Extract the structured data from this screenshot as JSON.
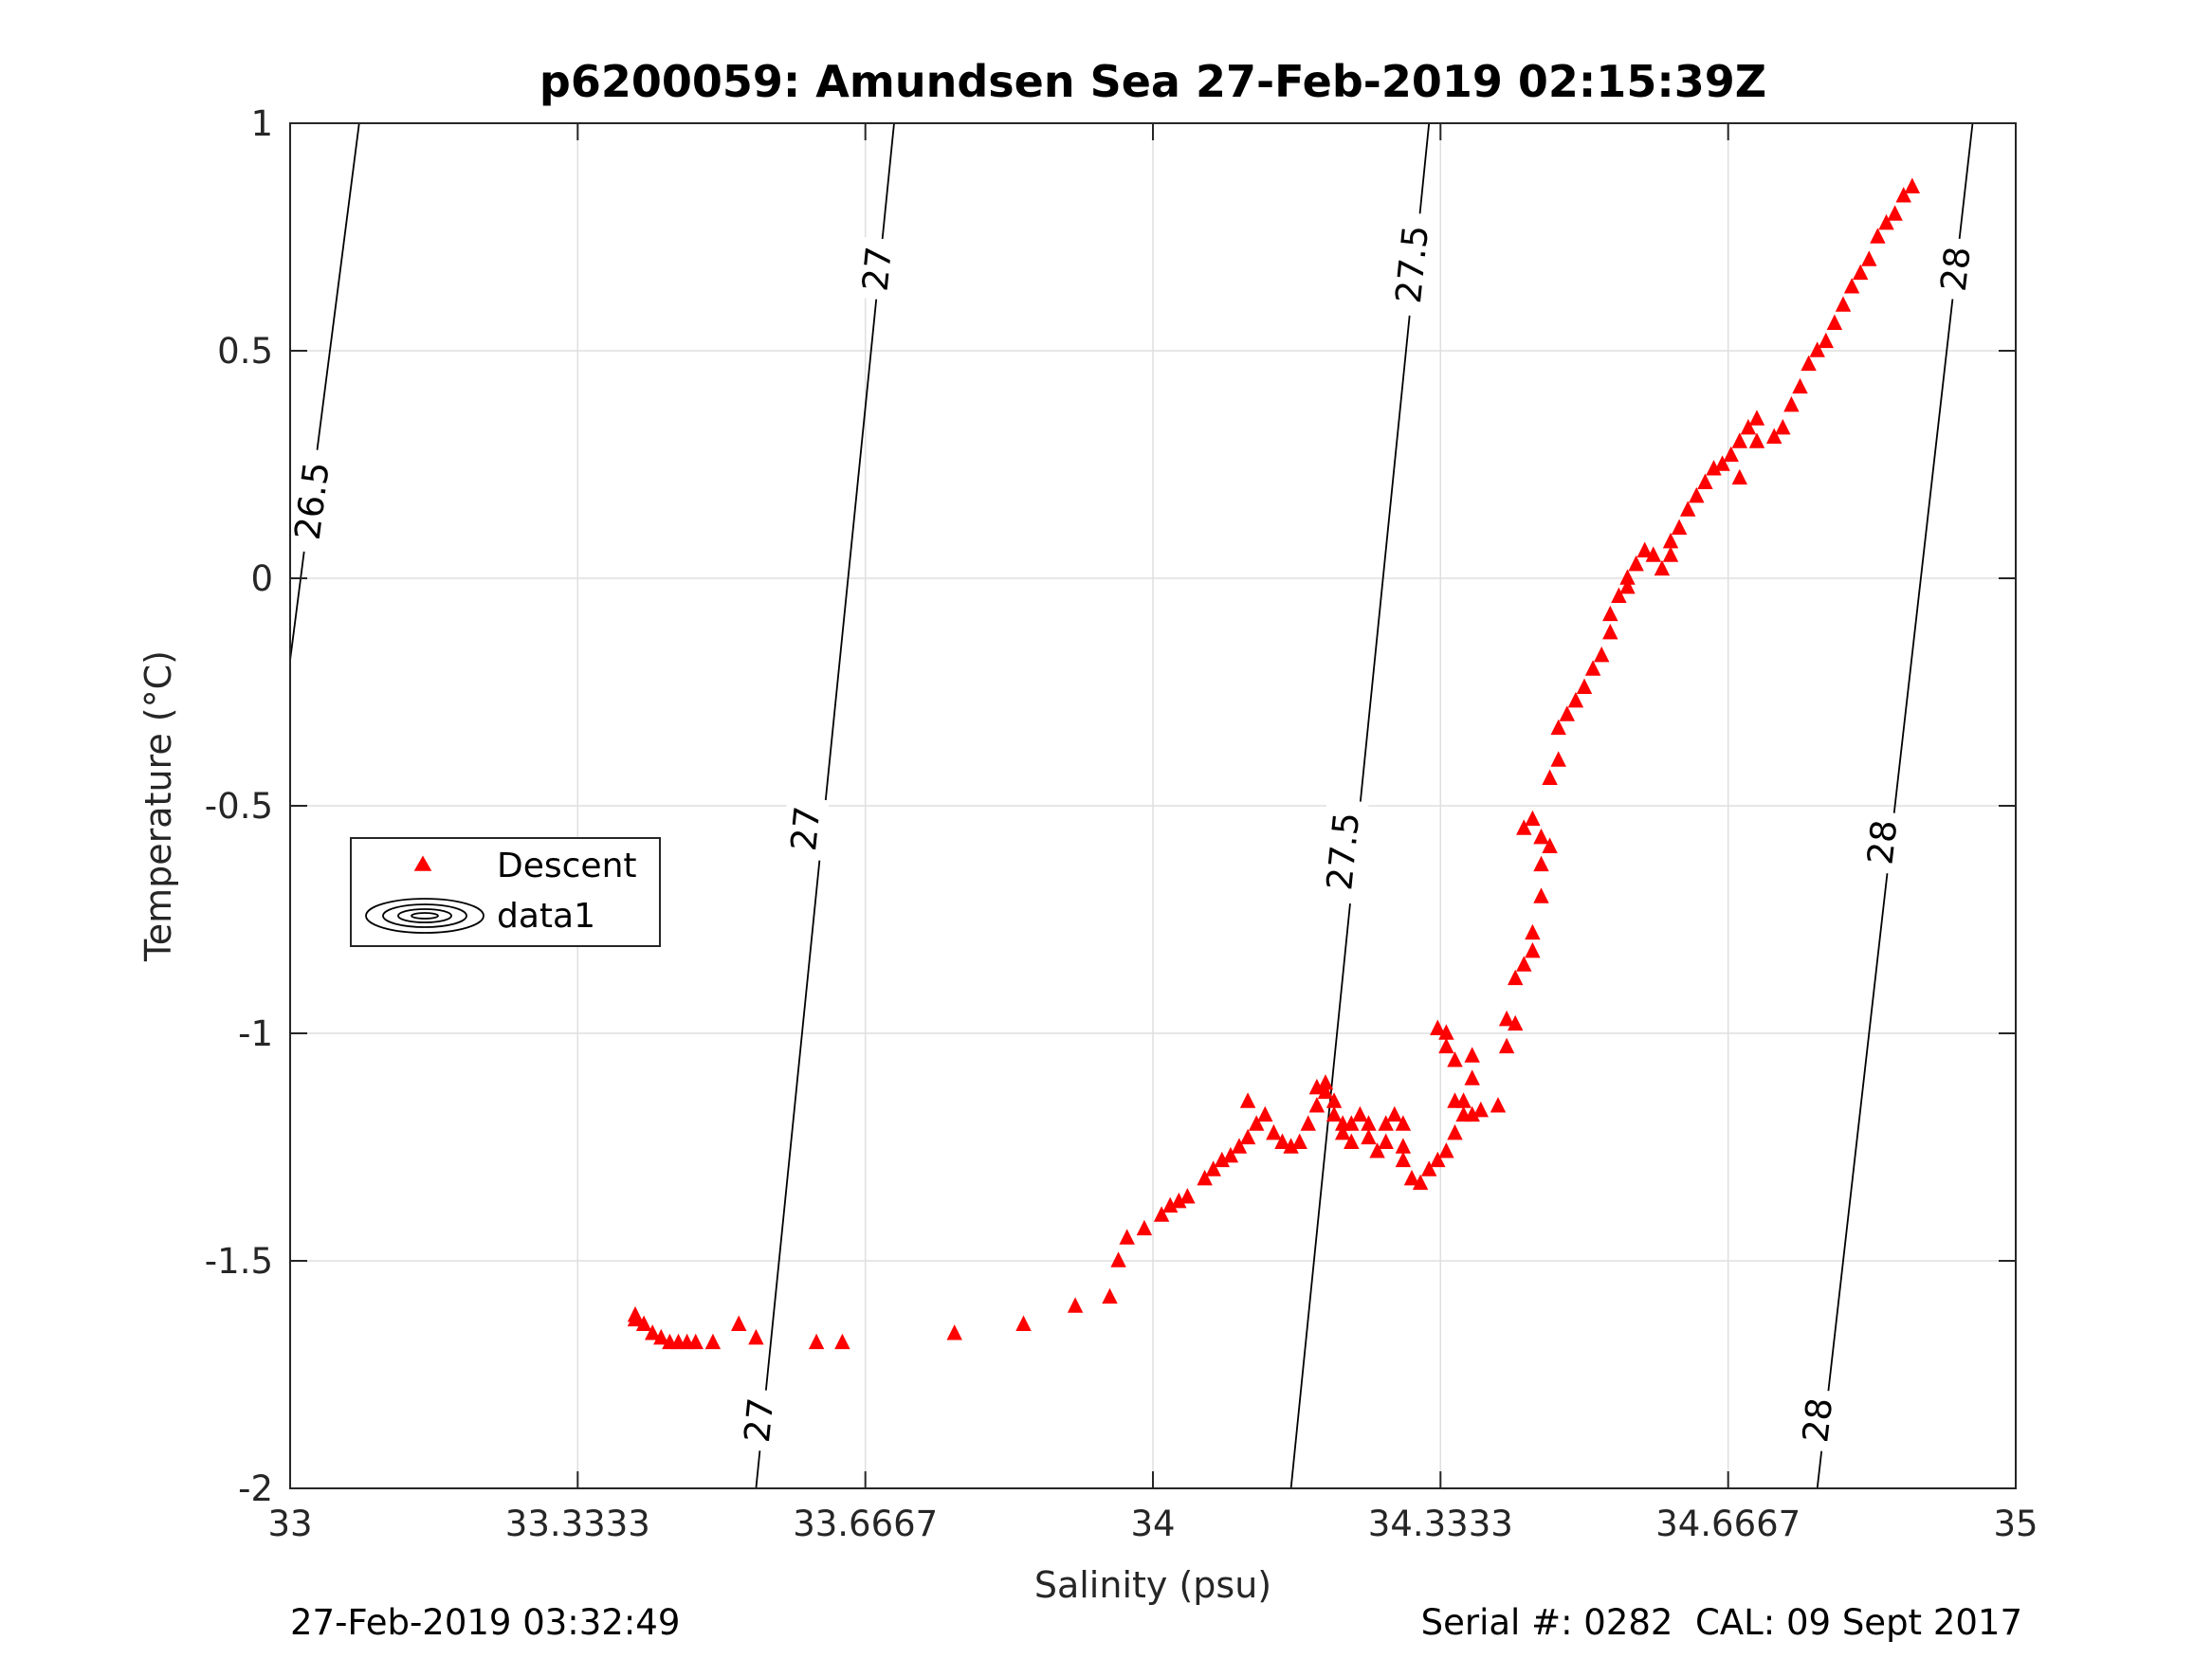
{
  "chart_data": {
    "type": "scatter",
    "title": "p6200059: Amundsen Sea 27-Feb-2019 02:15:39Z",
    "xlabel": "Salinity (psu)",
    "ylabel": "Temperature (°C)",
    "xlim": [
      33,
      35
    ],
    "ylim": [
      -2,
      1
    ],
    "xticks": [
      33,
      33.3333,
      33.6667,
      34,
      34.3333,
      34.6667,
      35
    ],
    "xtick_labels": [
      "33",
      "33.3333",
      "33.6667",
      "34",
      "34.3333",
      "34.6667",
      "35"
    ],
    "yticks": [
      1,
      0.5,
      0,
      -0.5,
      -1,
      -1.5,
      -2
    ],
    "ytick_labels": [
      "1",
      "0.5",
      "0",
      "-0.5",
      "-1",
      "-1.5",
      "-2"
    ],
    "grid": true,
    "legend_position": "center-left",
    "legend": [
      {
        "label": "Descent",
        "marker": "triangle",
        "color": "#ff0000"
      },
      {
        "label": "data1",
        "marker": "contour",
        "color": "#000000"
      }
    ],
    "series": [
      {
        "name": "Descent",
        "color": "#ff0000",
        "marker": "triangle",
        "points": [
          [
            33.4,
            -1.62
          ],
          [
            33.4,
            -1.63
          ],
          [
            33.41,
            -1.64
          ],
          [
            33.42,
            -1.66
          ],
          [
            33.43,
            -1.67
          ],
          [
            33.44,
            -1.68
          ],
          [
            33.45,
            -1.68
          ],
          [
            33.46,
            -1.68
          ],
          [
            33.47,
            -1.68
          ],
          [
            33.49,
            -1.68
          ],
          [
            33.52,
            -1.64
          ],
          [
            33.54,
            -1.67
          ],
          [
            33.61,
            -1.68
          ],
          [
            33.64,
            -1.68
          ],
          [
            33.77,
            -1.66
          ],
          [
            33.85,
            -1.64
          ],
          [
            33.91,
            -1.6
          ],
          [
            33.95,
            -1.58
          ],
          [
            33.96,
            -1.5
          ],
          [
            33.97,
            -1.45
          ],
          [
            33.99,
            -1.43
          ],
          [
            34.01,
            -1.4
          ],
          [
            34.02,
            -1.38
          ],
          [
            34.03,
            -1.37
          ],
          [
            34.04,
            -1.36
          ],
          [
            34.06,
            -1.32
          ],
          [
            34.07,
            -1.3
          ],
          [
            34.08,
            -1.28
          ],
          [
            34.09,
            -1.27
          ],
          [
            34.1,
            -1.25
          ],
          [
            34.11,
            -1.23
          ],
          [
            34.12,
            -1.2
          ],
          [
            34.11,
            -1.15
          ],
          [
            34.13,
            -1.18
          ],
          [
            34.14,
            -1.22
          ],
          [
            34.15,
            -1.24
          ],
          [
            34.16,
            -1.25
          ],
          [
            34.17,
            -1.24
          ],
          [
            34.18,
            -1.2
          ],
          [
            34.19,
            -1.16
          ],
          [
            34.19,
            -1.12
          ],
          [
            34.2,
            -1.11
          ],
          [
            34.2,
            -1.13
          ],
          [
            34.21,
            -1.15
          ],
          [
            34.21,
            -1.18
          ],
          [
            34.22,
            -1.2
          ],
          [
            34.22,
            -1.22
          ],
          [
            34.23,
            -1.24
          ],
          [
            34.23,
            -1.2
          ],
          [
            34.24,
            -1.18
          ],
          [
            34.25,
            -1.2
          ],
          [
            34.25,
            -1.23
          ],
          [
            34.26,
            -1.26
          ],
          [
            34.27,
            -1.24
          ],
          [
            34.27,
            -1.2
          ],
          [
            34.28,
            -1.18
          ],
          [
            34.29,
            -1.2
          ],
          [
            34.29,
            -1.25
          ],
          [
            34.29,
            -1.28
          ],
          [
            34.3,
            -1.32
          ],
          [
            34.31,
            -1.33
          ],
          [
            34.32,
            -1.3
          ],
          [
            34.33,
            -1.28
          ],
          [
            34.34,
            -1.26
          ],
          [
            34.35,
            -1.22
          ],
          [
            34.36,
            -1.18
          ],
          [
            34.36,
            -1.15
          ],
          [
            34.37,
            -1.1
          ],
          [
            34.37,
            -1.05
          ],
          [
            34.33,
            -0.99
          ],
          [
            34.34,
            -1.0
          ],
          [
            34.34,
            -1.03
          ],
          [
            34.35,
            -1.06
          ],
          [
            34.35,
            -1.15
          ],
          [
            34.37,
            -1.18
          ],
          [
            34.38,
            -1.17
          ],
          [
            34.4,
            -1.16
          ],
          [
            34.41,
            -1.03
          ],
          [
            34.41,
            -0.97
          ],
          [
            34.42,
            -0.98
          ],
          [
            34.42,
            -0.88
          ],
          [
            34.43,
            -0.85
          ],
          [
            34.44,
            -0.82
          ],
          [
            34.44,
            -0.78
          ],
          [
            34.45,
            -0.7
          ],
          [
            34.45,
            -0.63
          ],
          [
            34.43,
            -0.55
          ],
          [
            34.44,
            -0.53
          ],
          [
            34.45,
            -0.57
          ],
          [
            34.46,
            -0.59
          ],
          [
            34.46,
            -0.44
          ],
          [
            34.47,
            -0.4
          ],
          [
            34.47,
            -0.33
          ],
          [
            34.48,
            -0.3
          ],
          [
            34.49,
            -0.27
          ],
          [
            34.5,
            -0.24
          ],
          [
            34.51,
            -0.2
          ],
          [
            34.52,
            -0.17
          ],
          [
            34.53,
            -0.12
          ],
          [
            34.53,
            -0.08
          ],
          [
            34.54,
            -0.04
          ],
          [
            34.55,
            -0.02
          ],
          [
            34.55,
            0.0
          ],
          [
            34.56,
            0.03
          ],
          [
            34.57,
            0.06
          ],
          [
            34.58,
            0.05
          ],
          [
            34.59,
            0.02
          ],
          [
            34.6,
            0.05
          ],
          [
            34.6,
            0.08
          ],
          [
            34.61,
            0.11
          ],
          [
            34.62,
            0.15
          ],
          [
            34.63,
            0.18
          ],
          [
            34.64,
            0.21
          ],
          [
            34.65,
            0.24
          ],
          [
            34.66,
            0.25
          ],
          [
            34.67,
            0.27
          ],
          [
            34.68,
            0.3
          ],
          [
            34.69,
            0.33
          ],
          [
            34.7,
            0.35
          ],
          [
            34.68,
            0.22
          ],
          [
            34.7,
            0.3
          ],
          [
            34.72,
            0.31
          ],
          [
            34.73,
            0.33
          ],
          [
            34.74,
            0.38
          ],
          [
            34.75,
            0.42
          ],
          [
            34.76,
            0.47
          ],
          [
            34.77,
            0.5
          ],
          [
            34.78,
            0.52
          ],
          [
            34.79,
            0.56
          ],
          [
            34.8,
            0.6
          ],
          [
            34.81,
            0.64
          ],
          [
            34.82,
            0.67
          ],
          [
            34.83,
            0.7
          ],
          [
            34.84,
            0.75
          ],
          [
            34.85,
            0.78
          ],
          [
            34.86,
            0.8
          ],
          [
            34.87,
            0.84
          ],
          [
            34.88,
            0.86
          ]
        ]
      }
    ],
    "isopycnals": {
      "name": "data1",
      "color": "#000000",
      "lines": [
        {
          "value": "26.5",
          "points": [
            [
              33.0,
              -0.18
            ],
            [
              33.08,
              1.0
            ]
          ],
          "labels": [
            [
              33.025,
              0.17
            ]
          ]
        },
        {
          "value": "27",
          "points": [
            [
              33.54,
              -2.0
            ],
            [
              33.7,
              1.0
            ]
          ],
          "labels": [
            [
              33.543,
              -1.85
            ],
            [
              33.597,
              -0.55
            ],
            [
              33.68,
              0.68
            ]
          ]
        },
        {
          "value": "27.5",
          "points": [
            [
              34.16,
              -2.0
            ],
            [
              34.32,
              1.0
            ]
          ],
          "labels": [
            [
              34.22,
              -0.6
            ],
            [
              34.3,
              0.69
            ]
          ]
        },
        {
          "value": "28",
          "points": [
            [
              34.77,
              -2.0
            ],
            [
              34.95,
              1.0
            ]
          ],
          "labels": [
            [
              34.77,
              -1.85
            ],
            [
              34.845,
              -0.58
            ],
            [
              34.93,
              0.68
            ]
          ]
        }
      ]
    },
    "footer_left": "27-Feb-2019 03:32:49",
    "footer_right": "Serial #: 0282  CAL: 09 Sept 2017"
  }
}
